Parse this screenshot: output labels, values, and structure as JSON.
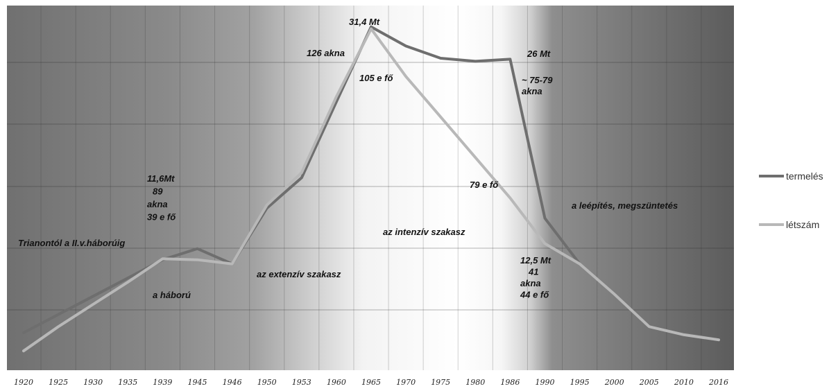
{
  "chart_data": {
    "type": "line",
    "x": [
      "1920",
      "1925",
      "1930",
      "1935",
      "1939",
      "1945",
      "1946",
      "1950",
      "1953",
      "1960",
      "1965",
      "1970",
      "1975",
      "1980",
      "1986",
      "1990",
      "1995",
      "2000",
      "2005",
      "2010",
      "2016"
    ],
    "series": [
      {
        "name": "termelés",
        "color": "#6e6e6e",
        "values": [
          1.2,
          3.0,
          4.8,
          6.6,
          8.4,
          9.5,
          8.0,
          13.5,
          16.5,
          24.0,
          31.4,
          29.5,
          28.3,
          28.0,
          28.2,
          12.5,
          8.0,
          5.0,
          1.8,
          1.1,
          0.5
        ]
      },
      {
        "name": "létszám",
        "color": "#b8b8b8",
        "values": [
          -0.6,
          1.8,
          4.0,
          6.2,
          8.5,
          8.4,
          8.0,
          13.8,
          17.0,
          24.5,
          31.2,
          26.5,
          22.5,
          18.5,
          14.5,
          10.0,
          8.0,
          5.0,
          1.8,
          1.0,
          0.5
        ]
      }
    ],
    "ylim": [
      -2.5,
      33.5
    ],
    "grid": {
      "horizontal": true,
      "vertical": true
    },
    "legend_position": "right",
    "annotations": [
      {
        "id": "peak",
        "lines": [
          "31,4 Mt"
        ]
      },
      {
        "id": "akna126",
        "lines": [
          "126 akna"
        ]
      },
      {
        "id": "mt26",
        "lines": [
          "26 Mt"
        ]
      },
      {
        "id": "fo105",
        "lines": [
          "105 e fő"
        ]
      },
      {
        "id": "akna7579",
        "lines": [
          "~ 75-79",
          "akna"
        ]
      },
      {
        "id": "mt116",
        "lines": [
          "11,6Mt",
          "89",
          "akna",
          "39 e fő"
        ]
      },
      {
        "id": "fo79",
        "lines": [
          "79 e fő"
        ]
      },
      {
        "id": "leepites",
        "lines": [
          "a leépítés, megszüntetés"
        ]
      },
      {
        "id": "intenziv",
        "lines": [
          "az intenzív szakasz"
        ]
      },
      {
        "id": "trianon",
        "lines": [
          "Trianontól a II.v.háborúig"
        ]
      },
      {
        "id": "mt125",
        "lines": [
          "12,5 Mt",
          "41",
          "akna",
          "44 e fő"
        ]
      },
      {
        "id": "extenziv",
        "lines": [
          "az extenzív szakasz"
        ]
      },
      {
        "id": "haboru",
        "lines": [
          "a háború"
        ]
      }
    ]
  }
}
